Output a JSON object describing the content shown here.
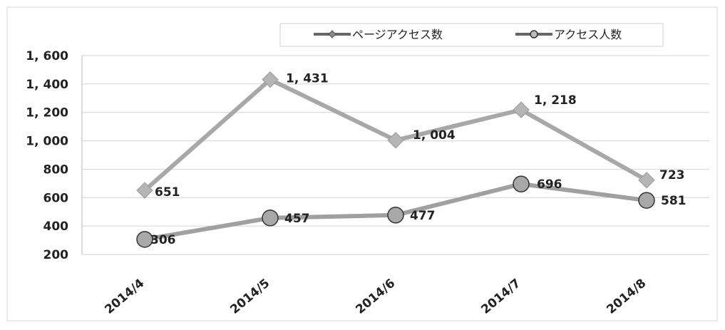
{
  "chart_data": {
    "type": "line",
    "categories": [
      "2014/4",
      "2014/5",
      "2014/6",
      "2014/7",
      "2014/8"
    ],
    "ylim": [
      200,
      1600
    ],
    "yticks": [
      200,
      400,
      600,
      800,
      1000,
      1200,
      1400,
      1600
    ],
    "ytick_labels": [
      "200",
      "400",
      "600",
      "800",
      "1, 000",
      "1, 200",
      "1, 400",
      "1, 600"
    ],
    "grid": true,
    "legend_position": "top",
    "series": [
      {
        "name": "ページアクセス数",
        "values": [
          651,
          1431,
          1004,
          1218,
          723
        ],
        "labels": [
          "651",
          "1, 431",
          "1, 004",
          "1, 218",
          "723"
        ],
        "marker": "diamond",
        "color": "#a8a8a8"
      },
      {
        "name": "アクセス人数",
        "values": [
          306,
          457,
          477,
          696,
          581
        ],
        "labels": [
          "306",
          "457",
          "477",
          "696",
          "581"
        ],
        "marker": "circle",
        "color": "#a0a0a0"
      }
    ]
  }
}
